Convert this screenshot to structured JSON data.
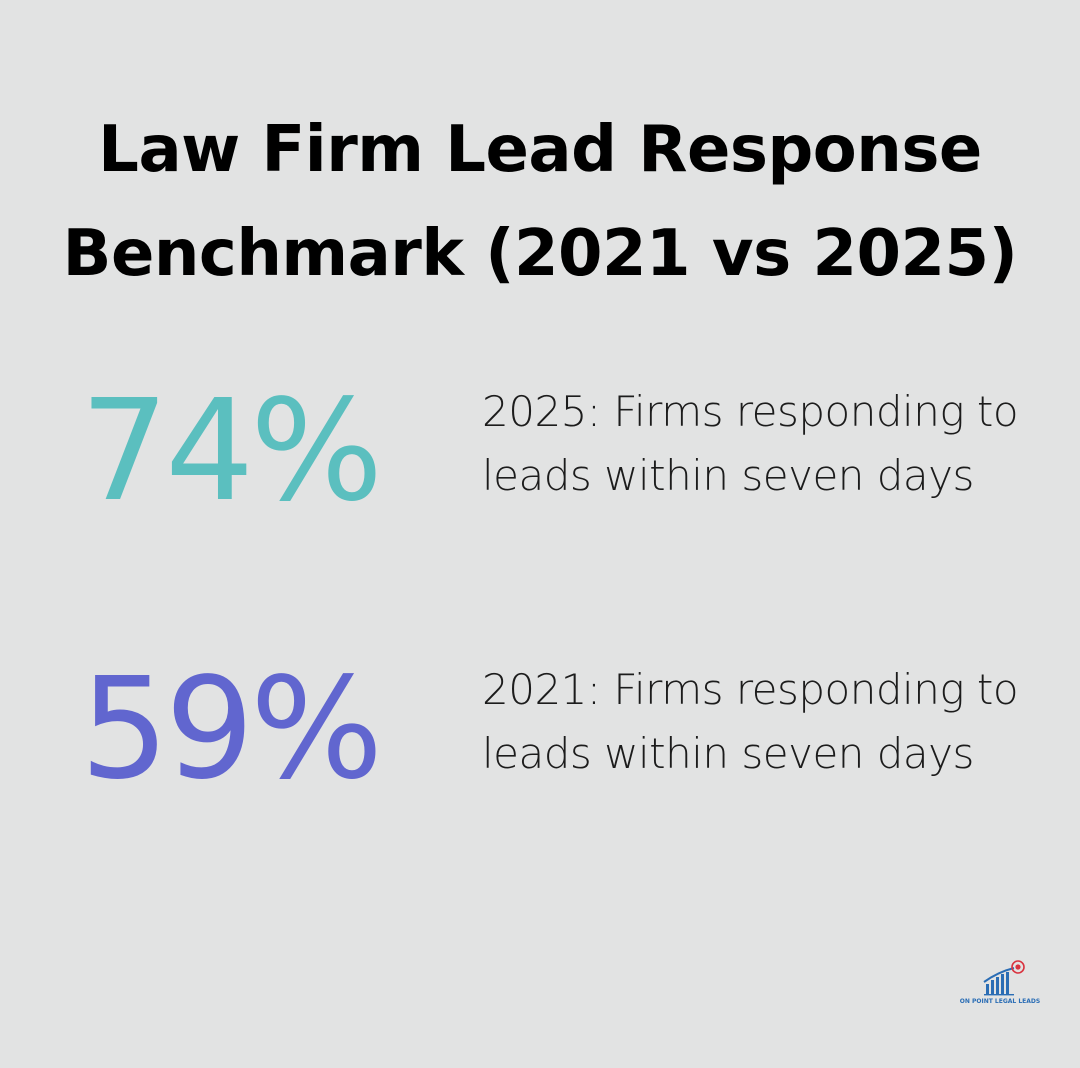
{
  "title": {
    "line1": "Law Firm Lead Response",
    "line2": "Benchmark (2021 vs 2025)"
  },
  "stats": [
    {
      "value": "74%",
      "description": "2025: Firms responding to leads within seven days",
      "color": "#5bbfbf"
    },
    {
      "value": "59%",
      "description": "2021: Firms responding to leads within seven days",
      "color": "#6166cf"
    }
  ],
  "logo": {
    "text": "ON POINT LEGAL LEADS",
    "icon": "bar-chart-target-icon",
    "colors": {
      "bars": "#2a6db5",
      "target": "#d9333f"
    }
  },
  "colors": {
    "background": "#e2e3e3",
    "text": "#000000"
  }
}
